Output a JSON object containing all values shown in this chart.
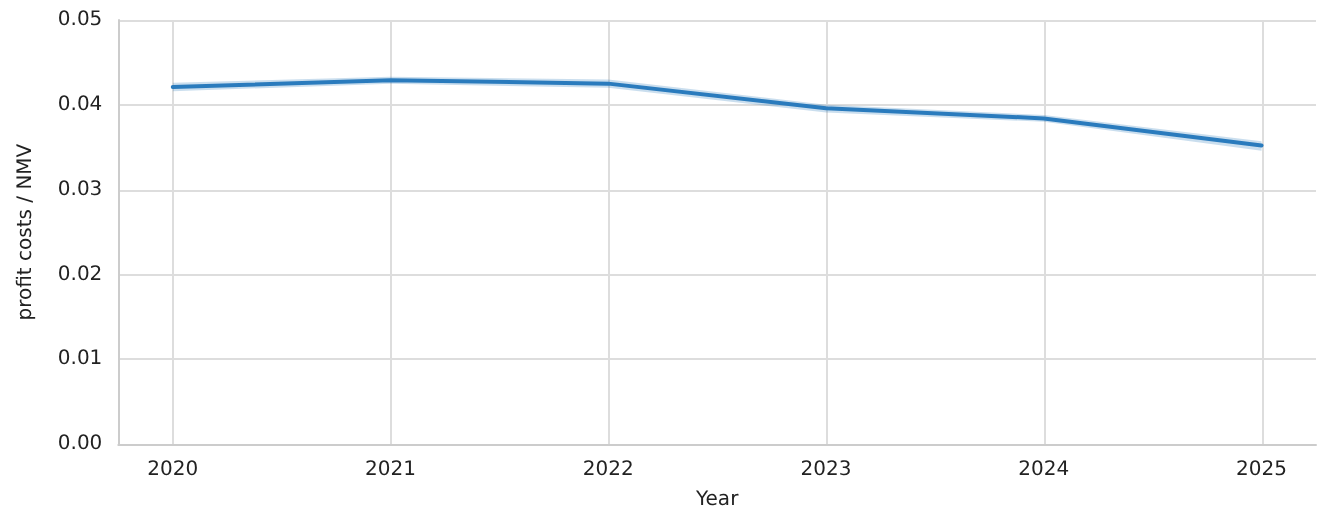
{
  "chart_data": {
    "type": "line",
    "xlabel": "Year",
    "ylabel": "profit costs / NMV",
    "x": [
      2020,
      2021,
      2022,
      2023,
      2024,
      2025
    ],
    "series": [
      {
        "color": "#2a7bbd",
        "values": [
          0.0421,
          0.0429,
          0.0425,
          0.0396,
          0.0384,
          0.0352
        ],
        "lower": [
          0.0416,
          0.0425,
          0.042,
          0.0391,
          0.038,
          0.0346
        ],
        "upper": [
          0.0426,
          0.0433,
          0.043,
          0.04,
          0.0388,
          0.0357
        ]
      }
    ],
    "xlim": [
      2019.75,
      2025.25
    ],
    "xticks": [
      2020,
      2021,
      2022,
      2023,
      2024,
      2025
    ],
    "ylim": [
      0,
      0.05
    ],
    "yticks": [
      {
        "value": 0,
        "label": "0.00"
      },
      0.01,
      0.02,
      0.03,
      0.04,
      0.05
    ],
    "grid": true,
    "marker": "none",
    "line_style": "solid"
  }
}
